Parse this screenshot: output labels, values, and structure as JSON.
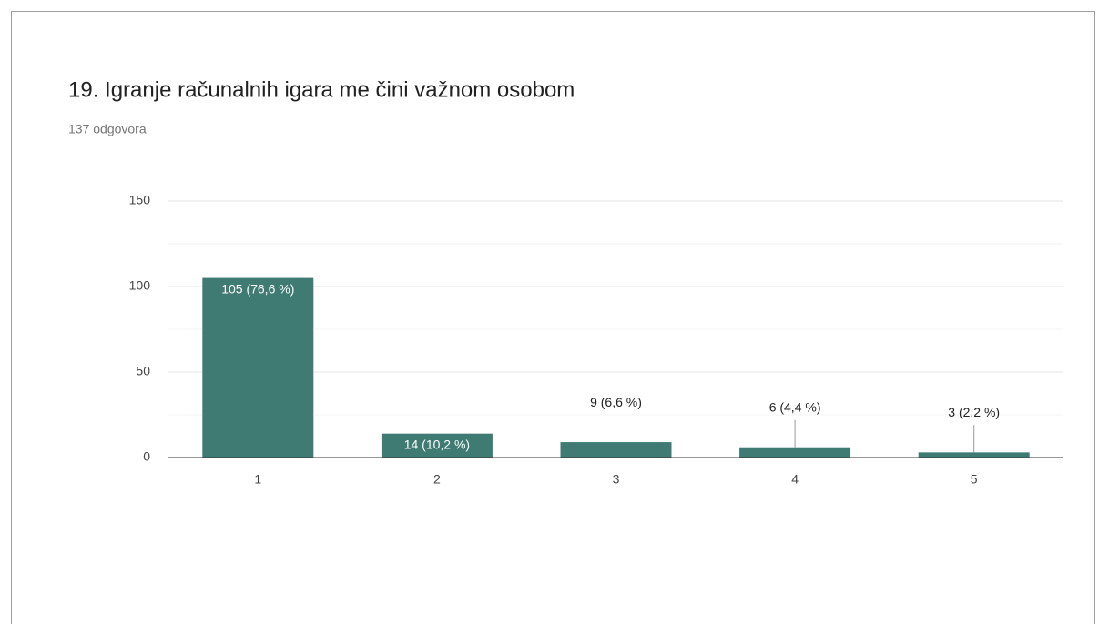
{
  "chart_data": {
    "type": "bar",
    "title": "19. Igranje računalnih igara me čini važnom osobom",
    "subtitle": "137 odgovora",
    "categories": [
      "1",
      "2",
      "3",
      "4",
      "5"
    ],
    "values": [
      105,
      14,
      9,
      6,
      3
    ],
    "value_labels": [
      "105 (76,6 %)",
      "14 (10,2 %)",
      "9 (6,6 %)",
      "6 (4,4 %)",
      "3 (2,2 %)"
    ],
    "color": "#3f7a73",
    "ylim": [
      0,
      150
    ],
    "yticks": [
      0,
      50,
      100,
      150
    ],
    "minor_yticks": [
      25,
      75,
      125
    ],
    "grid": true
  }
}
